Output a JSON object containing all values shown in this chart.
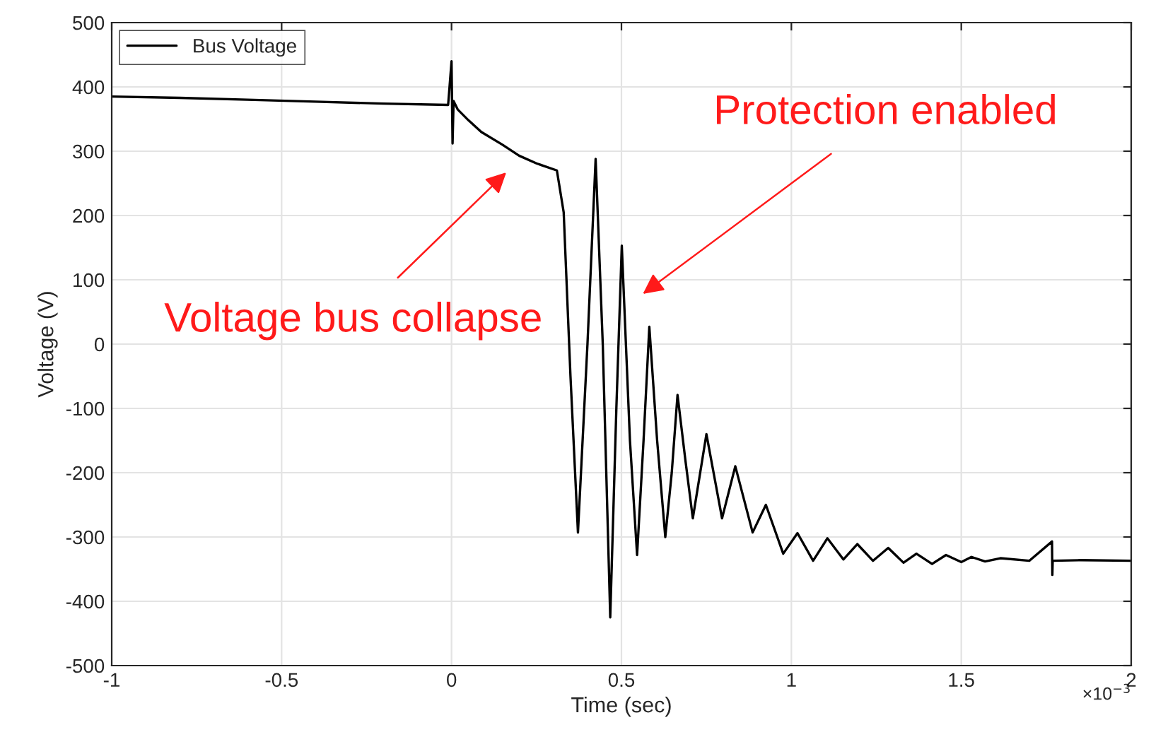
{
  "chart_data": {
    "type": "line",
    "xlabel": "Time (sec)",
    "ylabel": "Voltage (V)",
    "series": [
      {
        "name": "Bus Voltage",
        "color": "#000000",
        "x": [
          -1.0,
          -0.8,
          -0.6,
          -0.4,
          -0.2,
          -0.01,
          0.0,
          0.003,
          0.006,
          0.018,
          0.05,
          0.0875,
          0.15,
          0.199,
          0.25,
          0.31,
          0.33,
          0.35,
          0.372,
          0.4,
          0.424,
          0.445,
          0.467,
          0.485,
          0.501,
          0.525,
          0.546,
          0.565,
          0.582,
          0.605,
          0.629,
          0.648,
          0.665,
          0.688,
          0.71,
          0.75,
          0.796,
          0.835,
          0.886,
          0.925,
          0.976,
          1.018,
          1.064,
          1.106,
          1.153,
          1.194,
          1.24,
          1.285,
          1.33,
          1.368,
          1.414,
          1.455,
          1.5,
          1.53,
          1.57,
          1.615,
          1.7,
          1.767,
          1.768,
          1.769,
          1.85,
          2.0
        ],
        "values": [
          385,
          383,
          380,
          377,
          374,
          372,
          440,
          312,
          378,
          365,
          348,
          330,
          310,
          293,
          281,
          270,
          205,
          -50,
          -293,
          0,
          288,
          0,
          -425,
          -100,
          153,
          -150,
          -328,
          -150,
          27,
          -150,
          -300,
          -200,
          -79,
          -180,
          -271,
          -140,
          -271,
          -190,
          -293,
          -250,
          -326,
          -294,
          -337,
          -302,
          -335,
          -311,
          -337,
          -317,
          -340,
          -326,
          -342,
          -328,
          -339,
          -331,
          -338,
          -333,
          -337,
          -307,
          -359,
          -337,
          -336,
          -337
        ]
      }
    ],
    "xlim": [
      -1,
      2
    ],
    "xticks": [
      -1,
      -0.5,
      0,
      0.5,
      1,
      1.5,
      2
    ],
    "ylim": [
      -500,
      500
    ],
    "yticks": [
      -500,
      -400,
      -300,
      -200,
      -100,
      0,
      100,
      200,
      300,
      400,
      500
    ],
    "grid": true,
    "legend": "top left",
    "line_style": "solid",
    "marker": "none",
    "annotations": [
      "Voltage bus collapse",
      "Protection enabled",
      "×10$^{−3}$"
    ]
  }
}
